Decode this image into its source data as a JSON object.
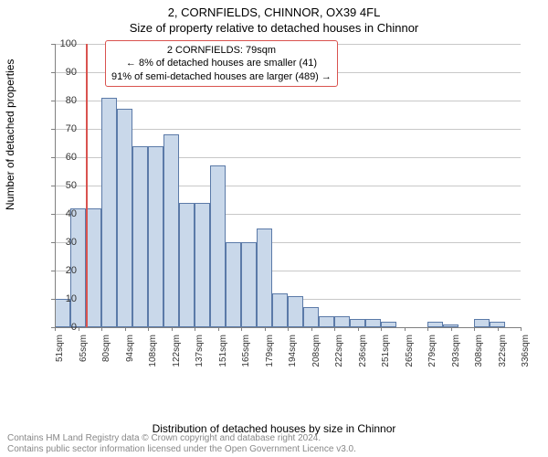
{
  "chart": {
    "type": "histogram",
    "title": "2, CORNFIELDS, CHINNOR, OX39 4FL",
    "subtitle": "Size of property relative to detached houses in Chinnor",
    "x_axis_label": "Distribution of detached houses by size in Chinnor",
    "y_axis_label": "Number of detached properties",
    "background_color": "#ffffff",
    "bar_fill": "#c9d8ea",
    "bar_border": "#5b7aa8",
    "grid_color": "#c8c8c8",
    "axis_color": "#808080",
    "marker_color": "#d9534f",
    "ylim": [
      0,
      100
    ],
    "ytick_step": 10,
    "y_ticks": [
      0,
      10,
      20,
      30,
      40,
      50,
      60,
      70,
      80,
      90,
      100
    ],
    "x_tick_labels": [
      "51sqm",
      "65sqm",
      "80sqm",
      "94sqm",
      "108sqm",
      "122sqm",
      "137sqm",
      "151sqm",
      "165sqm",
      "179sqm",
      "194sqm",
      "208sqm",
      "222sqm",
      "236sqm",
      "251sqm",
      "265sqm",
      "279sqm",
      "293sqm",
      "308sqm",
      "322sqm",
      "336sqm"
    ],
    "bars": [
      10,
      42,
      42,
      81,
      77,
      64,
      64,
      68,
      44,
      44,
      57,
      30,
      30,
      35,
      12,
      11,
      7,
      4,
      4,
      3,
      3,
      2,
      0,
      0,
      2,
      1,
      0,
      3,
      2,
      0
    ],
    "marker_bin_index": 2,
    "annotation": {
      "line1": "2 CORNFIELDS: 79sqm",
      "line2": "← 8% of detached houses are smaller (41)",
      "line3": "91% of semi-detached houses are larger (489) →"
    },
    "footer_line1": "Contains HM Land Registry data © Crown copyright and database right 2024.",
    "footer_line2": "Contains public sector information licensed under the Open Government Licence v3.0."
  }
}
